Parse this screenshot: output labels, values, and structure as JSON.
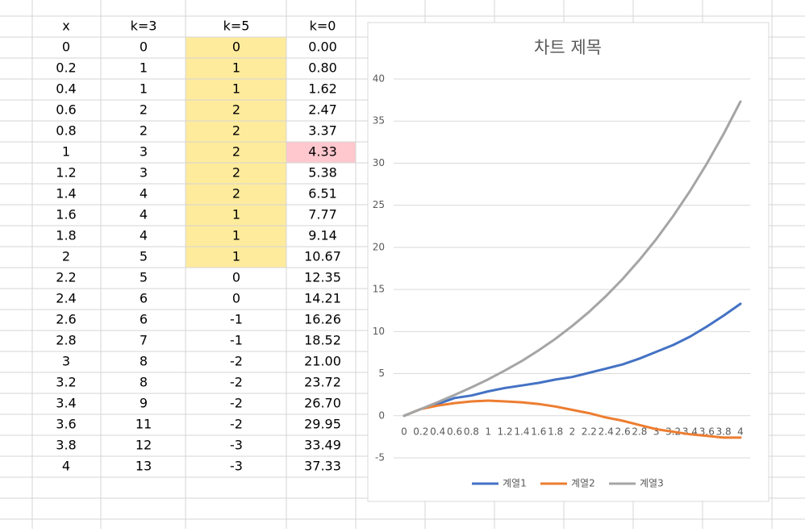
{
  "table": {
    "header": [
      "x",
      "k=3",
      "k=5",
      "k=0"
    ],
    "rows": [
      [
        "0",
        "0",
        "0",
        "0.00"
      ],
      [
        "0.2",
        "1",
        "1",
        "0.80"
      ],
      [
        "0.4",
        "1",
        "1",
        "1.62"
      ],
      [
        "0.6",
        "2",
        "2",
        "2.47"
      ],
      [
        "0.8",
        "2",
        "2",
        "3.37"
      ],
      [
        "1",
        "3",
        "2",
        "4.33"
      ],
      [
        "1.2",
        "3",
        "2",
        "5.38"
      ],
      [
        "1.4",
        "4",
        "2",
        "6.51"
      ],
      [
        "1.6",
        "4",
        "1",
        "7.77"
      ],
      [
        "1.8",
        "4",
        "1",
        "9.14"
      ],
      [
        "2",
        "5",
        "1",
        "10.67"
      ],
      [
        "2.2",
        "5",
        "0",
        "12.35"
      ],
      [
        "2.4",
        "6",
        "0",
        "14.21"
      ],
      [
        "2.6",
        "6",
        "-1",
        "16.26"
      ],
      [
        "2.8",
        "7",
        "-1",
        "18.52"
      ],
      [
        "3",
        "8",
        "-2",
        "21.00"
      ],
      [
        "3.2",
        "8",
        "-2",
        "23.72"
      ],
      [
        "3.4",
        "9",
        "-2",
        "26.70"
      ],
      [
        "3.6",
        "11",
        "-2",
        "29.95"
      ],
      [
        "3.8",
        "12",
        "-3",
        "33.49"
      ],
      [
        "4",
        "13",
        "-3",
        "37.33"
      ]
    ]
  },
  "chart_data": {
    "type": "line",
    "title": "차트 제목",
    "categories": [
      "0",
      "0.2",
      "0.4",
      "0.6",
      "0.8",
      "1",
      "1.2",
      "1.4",
      "1.6",
      "1.8",
      "2",
      "2.2",
      "2.4",
      "2.6",
      "2.8",
      "3",
      "3.2",
      "3.4",
      "3.6",
      "3.8",
      "4"
    ],
    "series": [
      {
        "name": "계열1",
        "color": "#4472c4",
        "values": [
          0,
          0.8,
          1.4,
          2.1,
          2.4,
          2.9,
          3.3,
          3.6,
          3.9,
          4.3,
          4.6,
          5.1,
          5.6,
          6.1,
          6.8,
          7.6,
          8.4,
          9.4,
          10.6,
          11.9,
          13.3
        ]
      },
      {
        "name": "계열2",
        "color": "#ed7d31",
        "values": [
          0,
          0.8,
          1.2,
          1.5,
          1.7,
          1.8,
          1.7,
          1.6,
          1.4,
          1.1,
          0.7,
          0.3,
          -0.2,
          -0.6,
          -1.1,
          -1.6,
          -1.9,
          -2.2,
          -2.4,
          -2.6,
          -2.6
        ]
      },
      {
        "name": "계열3",
        "color": "#a5a5a5",
        "values": [
          0,
          0.8,
          1.62,
          2.47,
          3.37,
          4.33,
          5.38,
          6.51,
          7.77,
          9.14,
          10.67,
          12.35,
          14.21,
          16.26,
          18.52,
          21,
          23.72,
          26.7,
          29.95,
          33.49,
          37.33
        ]
      }
    ],
    "ylim": [
      -5,
      40
    ],
    "yticks": [
      -5,
      0,
      5,
      10,
      15,
      20,
      25,
      30,
      35,
      40
    ],
    "grid": true,
    "legend": "bottom"
  }
}
